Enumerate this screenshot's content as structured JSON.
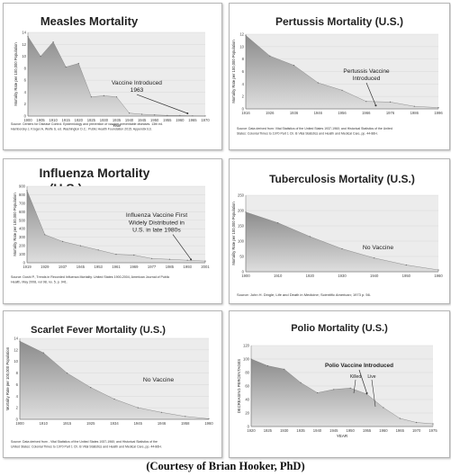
{
  "caption": "(Courtesy of Brian Hooker, PhD)",
  "colors": {
    "area_top": "#8c8c8c",
    "area_bottom": "#dedede",
    "plot_bg": "#ececec",
    "text": "#222222",
    "arrow": "#333333"
  },
  "chart_data": [
    {
      "type": "area",
      "title": "Measles Mortality",
      "xlabel": "Year",
      "ylabel": "Mortality Rate per 100,000 Population",
      "x_ticks": [
        "1900",
        "1905",
        "1910",
        "1915",
        "1920",
        "1925",
        "1930",
        "1935",
        "1940",
        "1945",
        "1950",
        "1955",
        "1960",
        "1965",
        "1970"
      ],
      "y_ticks": [
        "0",
        "2",
        "4",
        "6",
        "8",
        "10",
        "12",
        "14"
      ],
      "ylim": [
        0,
        14
      ],
      "values": [
        13.3,
        10.0,
        12.4,
        8.2,
        8.8,
        3.2,
        3.4,
        3.2,
        0.5,
        0.3,
        0.2,
        0.1,
        0.1,
        0.05,
        0.02
      ],
      "annotation": {
        "text": [
          "Vaccine Introduced",
          "1963"
        ],
        "x_index": 12.6,
        "y": 0.3
      },
      "source": [
        "Source: Centers for Disease Control. Epidemiology and prevention of vaccine-preventable diseases. 13th ed.",
        "Hamborsky J, Kroger A, Wolfe S, ed. Washington D.C.: Public Health Foundation 2015. Appendix E3."
      ]
    },
    {
      "type": "area",
      "title": "Pertussis Mortality (U.S.)",
      "xlabel": "",
      "ylabel": "Mortality Rate per 100,000 Population",
      "x_ticks": [
        "1916",
        "1926",
        "1936",
        "1946",
        "1956",
        "1966",
        "1976",
        "1986",
        "1996"
      ],
      "y_ticks": [
        "0",
        "2",
        "4",
        "6",
        "8",
        "10",
        "12"
      ],
      "ylim": [
        0,
        12
      ],
      "values": [
        11.8,
        8.5,
        7.0,
        4.2,
        3.0,
        1.2,
        1.1,
        0.4,
        0.2
      ],
      "annotation": {
        "text": [
          "Pertussis Vaccine",
          "Introduced"
        ],
        "x_index": 5.4,
        "y": 0.4
      },
      "source": [
        "Source: Data derived from: Vital Statistics of the United States 1937-1960; and Historical Statistics of the United",
        "States: Colonial Times to 1970 Part 1 Ch. B Vital Statistics and Health and Medical Care, pp. 44-86H."
      ]
    },
    {
      "type": "area",
      "title": "Influenza Mortality (U.S.)",
      "xlabel": "",
      "ylabel": "Mortality Rate per 100,000 Population",
      "x_ticks": [
        "1919",
        "1929",
        "1937",
        "1945",
        "1953",
        "1961",
        "1969",
        "1977",
        "1985",
        "1993",
        "2001"
      ],
      "y_ticks": [
        "0",
        "100",
        "200",
        "300",
        "400",
        "500",
        "600",
        "700",
        "800",
        "900"
      ],
      "ylim": [
        0,
        900
      ],
      "values": [
        850,
        330,
        250,
        200,
        150,
        100,
        90,
        50,
        40,
        30,
        20
      ],
      "annotation": {
        "text": [
          "Influenza Vaccine First",
          "Widely Distributed in",
          "U.S. in late 1980s"
        ],
        "x_index": 9.2,
        "y": 28
      },
      "source": [
        "Source: Doshi P., Trends in Recorded Influenza Mortality: United States 1900-2004, American Journal of Public",
        "Health, May 2008, vol 98, no. 5, p. 941."
      ]
    },
    {
      "type": "area",
      "title": "Tuberculosis Mortality (U.S.)",
      "xlabel": "",
      "ylabel": "Mortality Rate per 100,000 Population",
      "x_ticks": [
        "1900",
        "1910",
        "1920",
        "1930",
        "1940",
        "1950",
        "1960"
      ],
      "y_ticks": [
        "0",
        "50",
        "100",
        "150",
        "200",
        "250"
      ],
      "ylim": [
        0,
        250
      ],
      "values": [
        195,
        160,
        115,
        75,
        45,
        22,
        6
      ],
      "annotation": {
        "text": [
          "No Vaccine"
        ],
        "x_index": 4.1,
        "y": 75
      },
      "source": [
        "Source: John H. Dingle; Life and Death in Medicine; Scientific American; 1973 p. 56."
      ]
    },
    {
      "type": "area",
      "title": "Scarlet Fever Mortality (U.S.)",
      "xlabel": "",
      "ylabel": "Mortality Rate per 100,000 Population",
      "x_ticks": [
        "1900",
        "1910",
        "1915",
        "1925",
        "1934",
        "1945",
        "1946",
        "1958",
        "1960"
      ],
      "y_ticks": [
        "0",
        "2",
        "4",
        "6",
        "8",
        "10",
        "12",
        "14"
      ],
      "ylim": [
        0,
        14
      ],
      "values": [
        13.5,
        11.5,
        8.0,
        5.5,
        3.5,
        2.0,
        1.2,
        0.5,
        0.1
      ],
      "annotation": {
        "text": [
          "No Vaccine"
        ],
        "x_index": 4.6,
        "y": 5.5
      },
      "source": [
        "Source: Data derived from - Vital Statistics of the United States 1937-1960; and Historical Statistics of the",
        "United States: Colonial Times to 1970 Part 1 Ch. B Vital Statistics and Health and Medical Care, pp. 44-86H."
      ]
    },
    {
      "type": "area",
      "title": "Polio Mortality (U.S.)",
      "xlabel": "YEAR",
      "ylabel": "DECREASING PERCENTAGES",
      "x_ticks": [
        "1920",
        "1925",
        "1930",
        "1935",
        "1940",
        "1945",
        "1950",
        "1955",
        "1960",
        "1965",
        "1970",
        "1975"
      ],
      "y_ticks": [
        "0",
        "20",
        "40",
        "60",
        "80",
        "100",
        "120"
      ],
      "ylim": [
        0,
        120
      ],
      "values": [
        100,
        90,
        85,
        65,
        50,
        55,
        57,
        48,
        28,
        12,
        6,
        4
      ],
      "annotation": {
        "text": [
          "Polio Vaccine Introduced"
        ],
        "sub": [
          "Killed",
          "Live"
        ],
        "x_index": 7.0,
        "y": 48
      },
      "source": []
    }
  ]
}
